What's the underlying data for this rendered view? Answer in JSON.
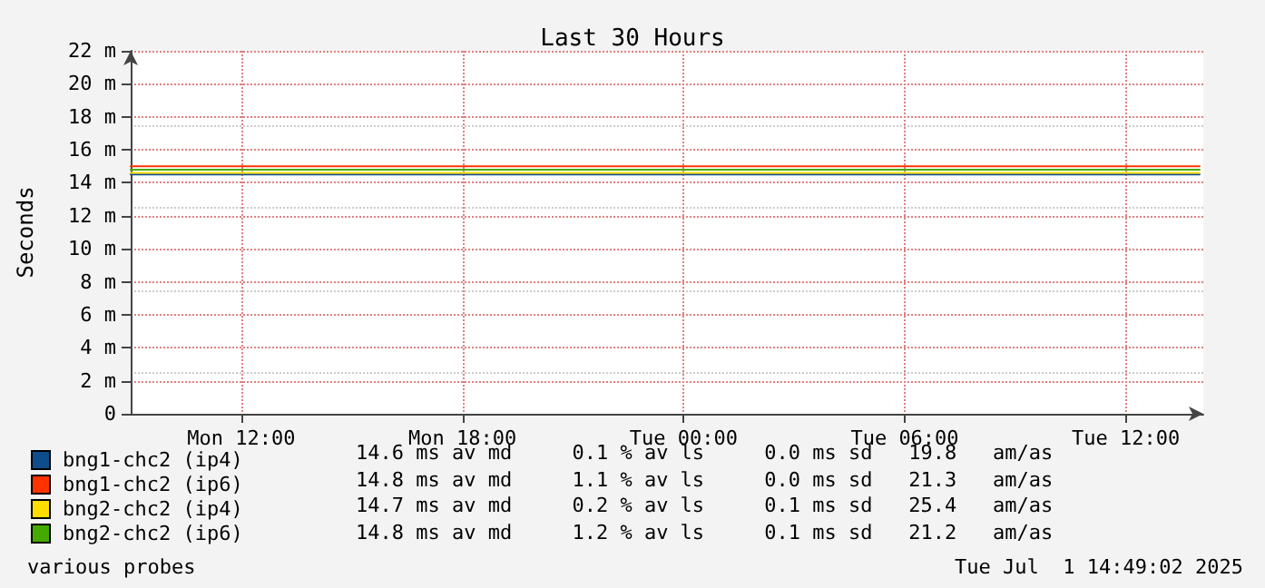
{
  "chart_data": {
    "type": "step",
    "title": "Last 30 Hours",
    "ylabel": "Seconds",
    "x": [
      "2025-06-30T09:00",
      "2025-06-30T10:00",
      "2025-06-30T11:00",
      "2025-06-30T12:00",
      "2025-06-30T13:00",
      "2025-06-30T14:00",
      "2025-06-30T15:00",
      "2025-06-30T16:00",
      "2025-06-30T17:00",
      "2025-06-30T18:00",
      "2025-06-30T19:00",
      "2025-06-30T20:00",
      "2025-06-30T21:00",
      "2025-06-30T22:00",
      "2025-06-30T23:00",
      "2025-07-01T00:00",
      "2025-07-01T01:00",
      "2025-07-01T02:00",
      "2025-07-01T03:00",
      "2025-07-01T04:00",
      "2025-07-01T05:00",
      "2025-07-01T06:00",
      "2025-07-01T07:00",
      "2025-07-01T08:00",
      "2025-07-01T09:00",
      "2025-07-01T10:00",
      "2025-07-01T11:00",
      "2025-07-01T12:00",
      "2025-07-01T13:00",
      "2025-07-01T14:00"
    ],
    "series": [
      {
        "name": "bng1-chc2 (ip4)",
        "color": "#0f4c8c",
        "values": [
          14.5,
          14.5,
          14.5,
          14.5,
          14.5,
          14.5,
          14.5,
          14.5,
          14.5,
          14.5,
          14.5,
          14.5,
          14.5,
          14.5,
          14.5,
          14.5,
          14.5,
          14.5,
          14.5,
          14.5,
          14.5,
          14.5,
          14.5,
          14.5,
          14.5,
          14.5,
          14.5,
          14.5,
          14.5,
          14.5
        ]
      },
      {
        "name": "bng1-chc2 (ip6)",
        "color": "#ff3300",
        "values": [
          15.0,
          15.0,
          15.0,
          15.0,
          15.0,
          15.0,
          15.0,
          15.0,
          15.0,
          15.0,
          15.0,
          15.0,
          15.0,
          15.0,
          15.0,
          15.0,
          15.0,
          15.0,
          15.0,
          15.0,
          15.0,
          15.0,
          15.0,
          15.0,
          15.0,
          15.0,
          15.0,
          15.0,
          15.0,
          15.0
        ]
      },
      {
        "name": "bng2-chc2 (ip4)",
        "color": "#ffdd00",
        "values": [
          14.6,
          14.6,
          14.6,
          14.6,
          14.6,
          14.6,
          14.6,
          14.6,
          14.6,
          14.6,
          14.6,
          14.6,
          14.6,
          14.6,
          14.6,
          14.6,
          14.6,
          14.6,
          14.6,
          14.6,
          14.6,
          14.6,
          14.6,
          14.6,
          14.6,
          14.6,
          14.6,
          14.6,
          14.6,
          14.6
        ]
      },
      {
        "name": "bng2-chc2 (ip6)",
        "color": "#44aa00",
        "values": [
          14.8,
          14.8,
          14.8,
          14.8,
          14.8,
          14.8,
          14.8,
          14.8,
          14.8,
          14.8,
          14.8,
          14.8,
          14.8,
          14.8,
          14.8,
          14.8,
          14.8,
          14.8,
          14.8,
          14.8,
          14.8,
          14.8,
          14.8,
          14.8,
          14.8,
          14.8,
          14.8,
          14.8,
          14.8,
          14.8
        ]
      }
    ],
    "xlim": [
      "2025-06-30T09:00",
      "2025-07-01T14:06"
    ],
    "xticks": [
      {
        "value": "2025-06-30T12:00",
        "label": "Mon 12:00"
      },
      {
        "value": "2025-06-30T18:00",
        "label": "Mon 18:00"
      },
      {
        "value": "2025-07-01T00:00",
        "label": "Tue 00:00"
      },
      {
        "value": "2025-07-01T06:00",
        "label": "Tue 06:00"
      },
      {
        "value": "2025-07-01T12:00",
        "label": "Tue 12:00"
      }
    ],
    "ylim": [
      0,
      22
    ],
    "yticks": [
      {
        "value": 0,
        "label": "0"
      },
      {
        "value": 2,
        "label": "2 m"
      },
      {
        "value": 4,
        "label": "4 m"
      },
      {
        "value": 6,
        "label": "6 m"
      },
      {
        "value": 8,
        "label": "8 m"
      },
      {
        "value": 10,
        "label": "10 m"
      },
      {
        "value": 12,
        "label": "12 m"
      },
      {
        "value": 14,
        "label": "14 m"
      },
      {
        "value": 16,
        "label": "16 m"
      },
      {
        "value": 18,
        "label": "18 m"
      },
      {
        "value": 20,
        "label": "20 m"
      },
      {
        "value": 22,
        "label": "22 m"
      }
    ],
    "grid": true,
    "legend": "bottom left",
    "marker": "none",
    "line_style": "solid",
    "annotations": [
      "14.6 ms av md     0.1 % av ls     0.0 ms sd   19.8   am/as",
      "14.8 ms av md     1.1 % av ls     0.0 ms sd   21.3   am/as",
      "14.7 ms av md     0.2 % av ls     0.1 ms sd   25.4   am/as",
      "14.8 ms av md     1.2 % av ls     0.1 ms sd   21.2   am/as",
      "various probes",
      "Tue Jul  1 14:49:02 2025"
    ]
  }
}
